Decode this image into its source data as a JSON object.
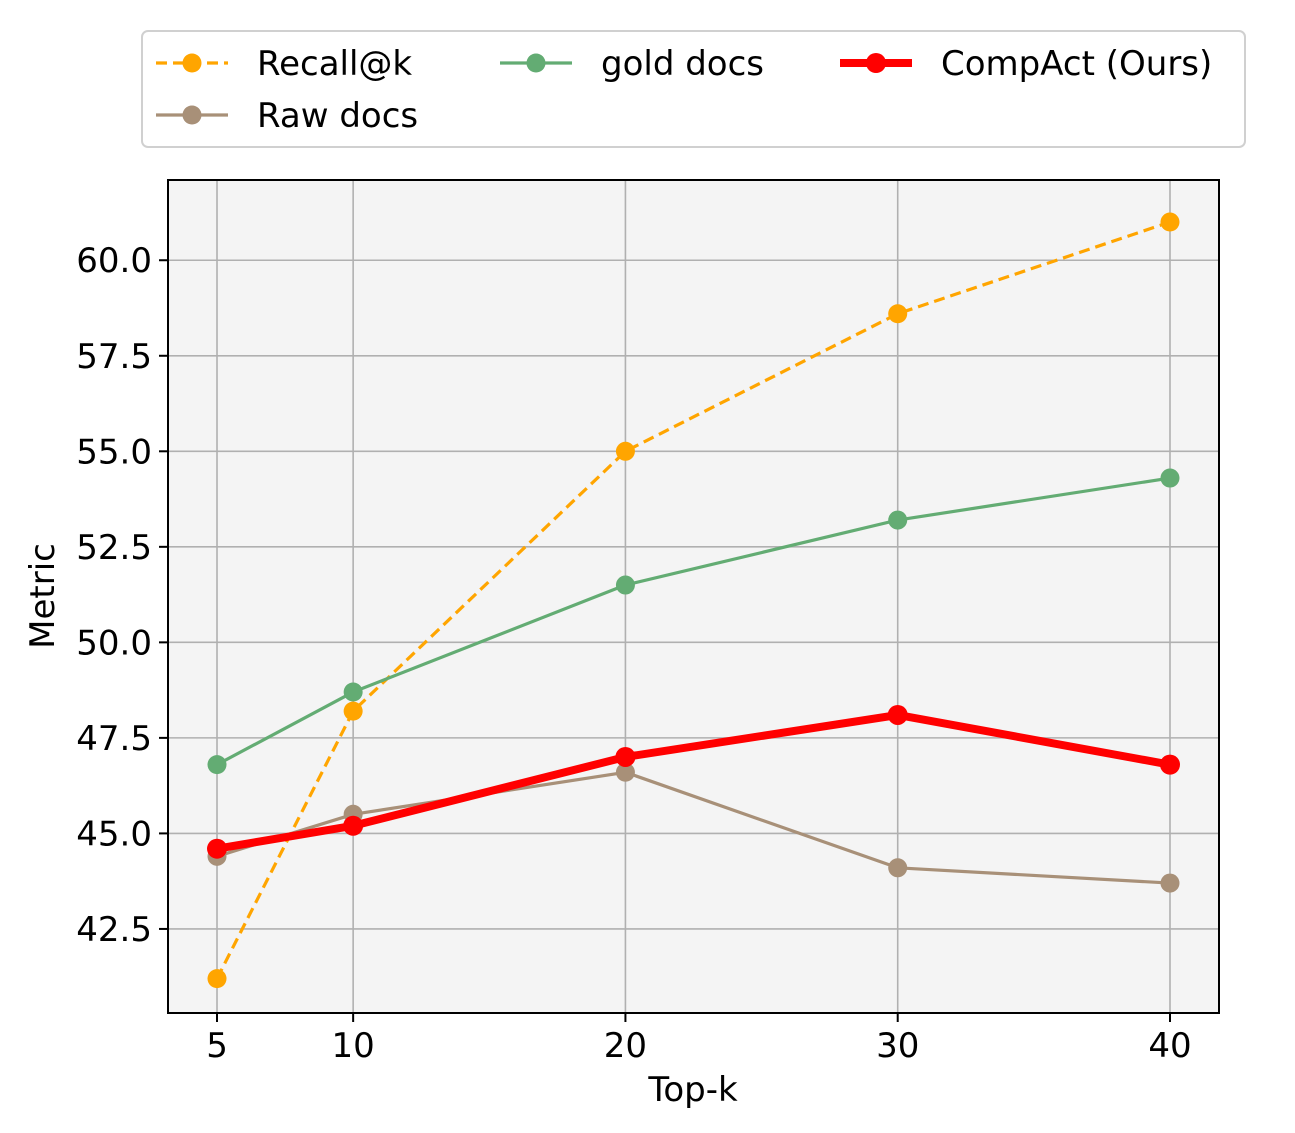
{
  "chart_data": {
    "type": "line",
    "x": [
      5,
      10,
      20,
      30,
      40
    ],
    "xlabel": "Top-k",
    "ylabel": "Metric",
    "xlim": [
      3.2,
      41.8
    ],
    "ylim": [
      40.3,
      62.1
    ],
    "xticks": [
      "5",
      "10",
      "20",
      "30",
      "40"
    ],
    "yticks": [
      "42.5",
      "45.0",
      "47.5",
      "50.0",
      "52.5",
      "55.0",
      "57.5",
      "60.0"
    ],
    "grid": true,
    "legend_position": "top",
    "series": [
      {
        "name": "Recall@k",
        "values": [
          41.2,
          48.2,
          55.0,
          58.6,
          61.0
        ],
        "color": "#ffa500",
        "style": "dashed"
      },
      {
        "name": "gold docs",
        "values": [
          46.8,
          48.7,
          51.5,
          53.2,
          54.3
        ],
        "color": "#63ac73",
        "style": "solid"
      },
      {
        "name": "CompAct (Ours)",
        "values": [
          44.6,
          45.2,
          47.0,
          48.1,
          46.8
        ],
        "color": "#ff0000",
        "style": "bold"
      },
      {
        "name": "Raw docs",
        "values": [
          44.4,
          45.5,
          46.6,
          44.1,
          43.7
        ],
        "color": "#a89078",
        "style": "solid"
      }
    ],
    "plot_background": "#f4f4f4"
  }
}
